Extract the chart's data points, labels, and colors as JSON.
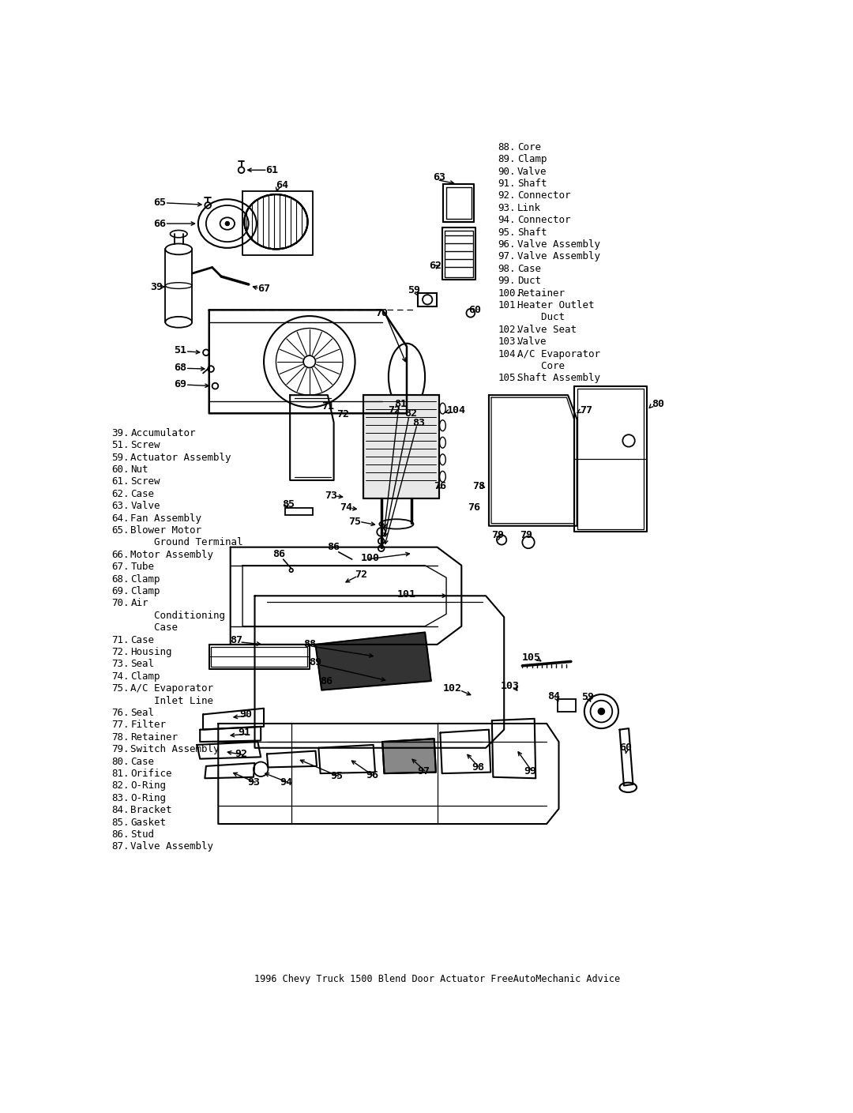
{
  "title": "1996 Chevy Truck 1500 Blend Door Actuator FreeAutoMechanic Advice",
  "bg_color": "#ffffff",
  "line_color": "#000000",
  "fig_width": 10.8,
  "fig_height": 14.09,
  "right_legend": [
    [
      "88.",
      "Core"
    ],
    [
      "89.",
      "Clamp"
    ],
    [
      "90.",
      "Valve"
    ],
    [
      "91.",
      "Shaft"
    ],
    [
      "92.",
      "Connector"
    ],
    [
      "93.",
      "Link"
    ],
    [
      "94.",
      "Connector"
    ],
    [
      "95.",
      "Shaft"
    ],
    [
      "96.",
      "Valve Assembly"
    ],
    [
      "97.",
      "Valve Assembly"
    ],
    [
      "98.",
      "Case"
    ],
    [
      "99.",
      "Duct"
    ],
    [
      "100.",
      "Retainer"
    ],
    [
      "101.",
      "Heater Outlet"
    ],
    [
      "",
      "    Duct"
    ],
    [
      "102.",
      "Valve Seat"
    ],
    [
      "103.",
      "Valve"
    ],
    [
      "104.",
      "A/C Evaporator"
    ],
    [
      "",
      "    Core"
    ],
    [
      "105.",
      "Shaft Assembly"
    ]
  ],
  "left_legend": [
    [
      "39.",
      "Accumulator"
    ],
    [
      "51.",
      "Screw"
    ],
    [
      "59.",
      "Actuator Assembly"
    ],
    [
      "60.",
      "Nut"
    ],
    [
      "61.",
      "Screw"
    ],
    [
      "62.",
      "Case"
    ],
    [
      "63.",
      "Valve"
    ],
    [
      "64.",
      "Fan Assembly"
    ],
    [
      "65.",
      "Blower Motor"
    ],
    [
      "",
      "    Ground Terminal"
    ],
    [
      "66.",
      "Motor Assembly"
    ],
    [
      "67.",
      "Tube"
    ],
    [
      "68.",
      "Clamp"
    ],
    [
      "69.",
      "Clamp"
    ],
    [
      "70.",
      "Air"
    ],
    [
      "",
      "    Conditioning"
    ],
    [
      "",
      "    Case"
    ],
    [
      "71.",
      "Case"
    ],
    [
      "72.",
      "Housing"
    ],
    [
      "73.",
      "Seal"
    ],
    [
      "74.",
      "Clamp"
    ],
    [
      "75.",
      "A/C Evaporator"
    ],
    [
      "",
      "    Inlet Line"
    ],
    [
      "76.",
      "Seal"
    ],
    [
      "77.",
      "Filter"
    ],
    [
      "78.",
      "Retainer"
    ],
    [
      "79.",
      "Switch Assembly"
    ],
    [
      "80.",
      "Case"
    ],
    [
      "81.",
      "Orifice"
    ],
    [
      "82.",
      "O-Ring"
    ],
    [
      "83.",
      "O-Ring"
    ],
    [
      "84.",
      "Bracket"
    ],
    [
      "85.",
      "Gasket"
    ],
    [
      "86.",
      "Stud"
    ],
    [
      "87.",
      "Valve Assembly"
    ]
  ]
}
